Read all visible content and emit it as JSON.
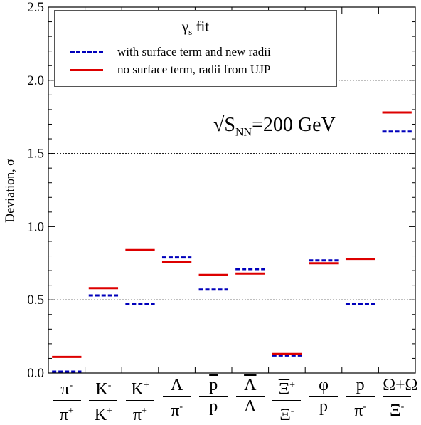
{
  "chart_data": {
    "type": "scatter",
    "ylabel": "Deviation, σ",
    "ylim": [
      0,
      2.5
    ],
    "yticks": [
      "0.0",
      "0.5",
      "1.0",
      "1.5",
      "2.0",
      "2.5"
    ],
    "grid": "horizontal dotted at 0.5, 1.5, 2.0",
    "annotation": {
      "prefix": "√S",
      "sub": "NN",
      "suffix": "=200 GeV"
    },
    "legend": {
      "title": "γ",
      "title_sub": "s",
      "title_suffix": " fit",
      "placement": "top-left"
    },
    "categories": [
      {
        "num": "π",
        "num_sup": "-",
        "den": "π",
        "den_sup": "+"
      },
      {
        "num": "K",
        "num_sup": "-",
        "den": "K",
        "den_sup": "+"
      },
      {
        "num": "K",
        "num_sup": "+",
        "den": "π",
        "den_sup": "+"
      },
      {
        "num": "Λ",
        "num_sup": "",
        "den": "π",
        "den_sup": "-"
      },
      {
        "num": "p",
        "num_sup": "",
        "den": "p",
        "den_sup": "",
        "num_bar": true
      },
      {
        "num": "Λ",
        "num_sup": "",
        "den": "Λ",
        "den_sup": "",
        "num_bar": true
      },
      {
        "num": "Ξ",
        "num_sup": "+",
        "den": "Ξ",
        "den_sup": "-",
        "num_bar": true
      },
      {
        "num": "φ",
        "num_sup": "",
        "den": "p",
        "den_sup": ""
      },
      {
        "num": "p",
        "num_sup": "",
        "den": "π",
        "den_sup": "-"
      },
      {
        "num": "Ω+Ω",
        "num_sup": "",
        "den": "Ξ",
        "den_sup": "-",
        "num_bar_part": true
      }
    ],
    "series": [
      {
        "name": "with surface term and new radii",
        "style": "dashed",
        "color": "#0000bb",
        "values": [
          0.01,
          0.53,
          0.47,
          0.79,
          0.57,
          0.71,
          0.12,
          0.77,
          0.47,
          1.65
        ]
      },
      {
        "name": "no surface term, radii from UJP",
        "style": "solid",
        "color": "#dd0000",
        "values": [
          0.11,
          0.58,
          0.84,
          0.76,
          0.67,
          0.68,
          0.13,
          0.75,
          0.78,
          1.78
        ]
      }
    ]
  }
}
